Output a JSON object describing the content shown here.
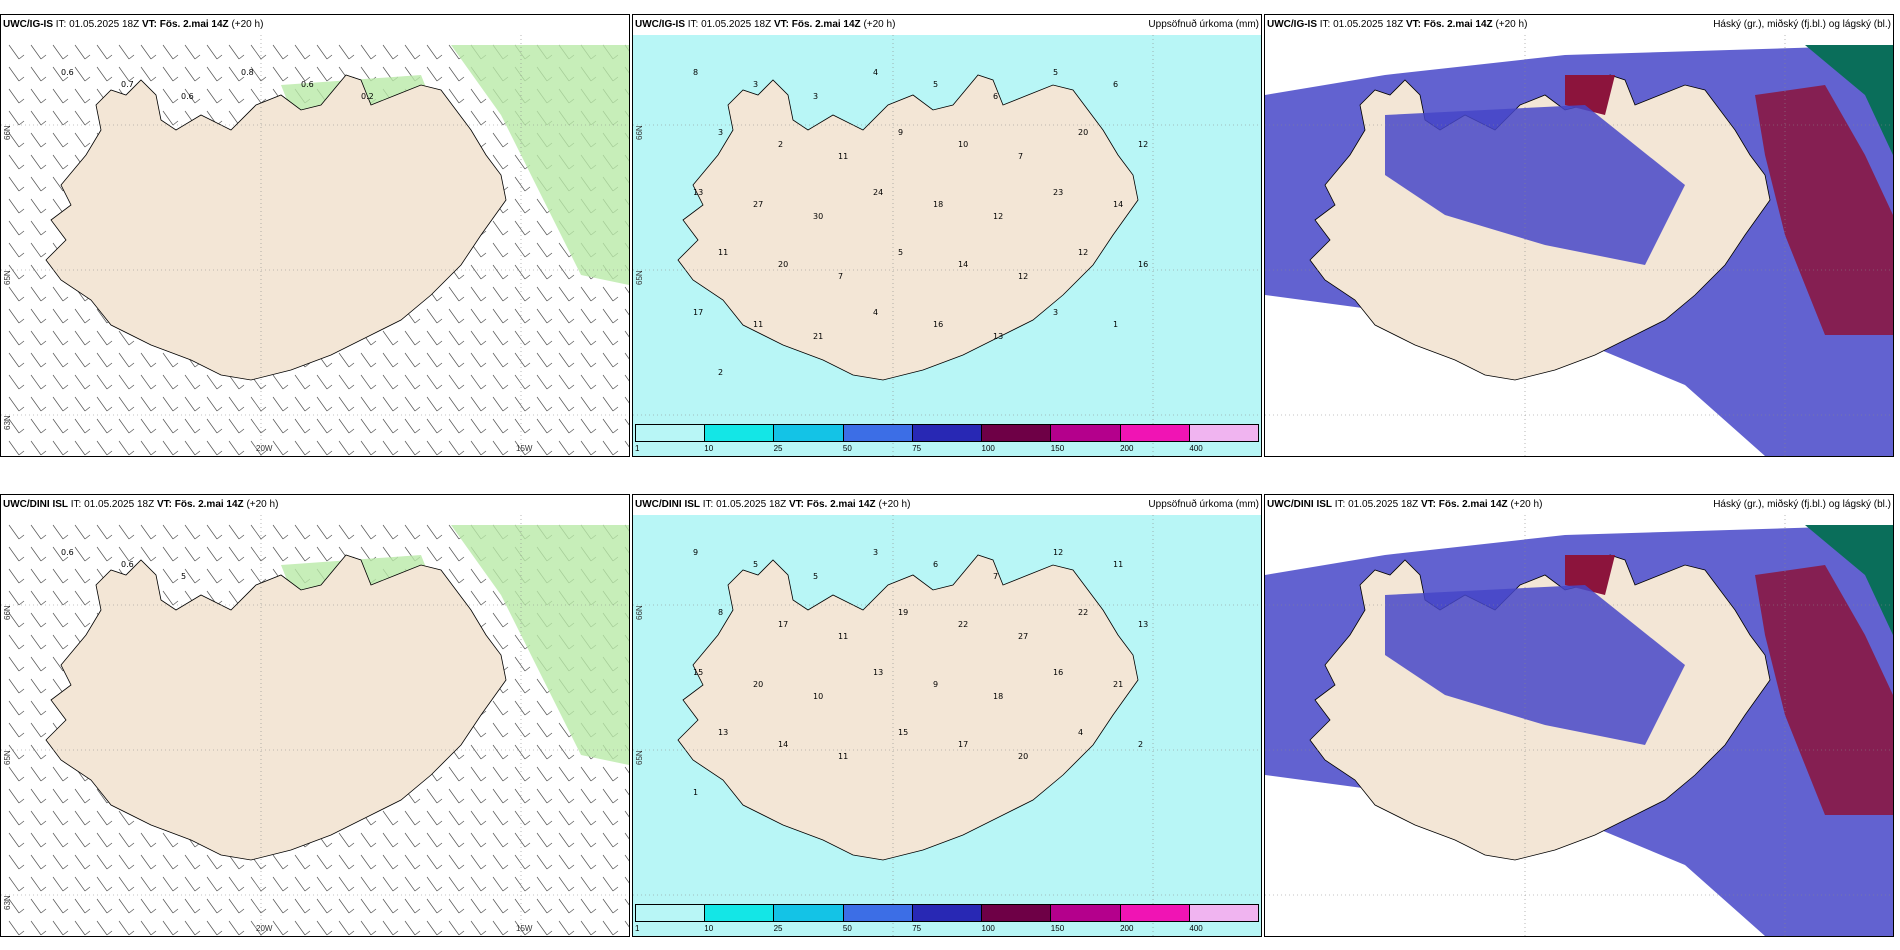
{
  "panels": [
    {
      "model": "UWC/IG-IS",
      "it": "IT: 01.05.2025 18Z",
      "vt_label": "VT:",
      "vt": "Fös. 2.mai 14Z",
      "lead": "(+20 h)",
      "right": "",
      "type": "wind",
      "lat_labels": [
        "66N",
        "65N",
        "63N"
      ],
      "lon_labels": [
        "20W",
        "15W"
      ],
      "values": [
        "0.6",
        "0.7",
        "0.6",
        "0.8",
        "0.6",
        "0.2"
      ]
    },
    {
      "model": "UWC/IG-IS",
      "it": "IT: 01.05.2025 18Z",
      "vt_label": "VT:",
      "vt": "Fös. 2.mai 14Z",
      "lead": "(+20 h)",
      "right": "Uppsöfnuð úrkoma (mm)",
      "type": "precip",
      "lat_labels": [
        "66N",
        "65N"
      ],
      "values": [
        "8",
        "3",
        "3",
        "4",
        "5",
        "6",
        "5",
        "6",
        "3",
        "2",
        "11",
        "9",
        "10",
        "7",
        "20",
        "12",
        "13",
        "27",
        "30",
        "24",
        "18",
        "12",
        "23",
        "14",
        "11",
        "20",
        "7",
        "5",
        "14",
        "12",
        "12",
        "16",
        "17",
        "11",
        "21",
        "4",
        "16",
        "13",
        "3",
        "1",
        "2"
      ]
    },
    {
      "model": "UWC/IG-IS",
      "it": "IT: 01.05.2025 18Z",
      "vt_label": "VT:",
      "vt": "Fös. 2.mai 14Z",
      "lead": "(+20 h)",
      "right": "Háský (gr.), miðský (fj.bl.) og lágský (bl.)",
      "type": "cloud"
    },
    {
      "model": "UWC/DINI ISL",
      "it": "IT: 01.05.2025 18Z",
      "vt_label": "VT:",
      "vt": "Fös. 2.mai 14Z",
      "lead": "(+20 h)",
      "right": "",
      "type": "wind",
      "lat_labels": [
        "66N",
        "65N",
        "63N"
      ],
      "lon_labels": [
        "20W",
        "15W"
      ],
      "values": [
        "0.6",
        "0.6",
        "5"
      ]
    },
    {
      "model": "UWC/DINI ISL",
      "it": "IT: 01.05.2025 18Z",
      "vt_label": "VT:",
      "vt": "Fös. 2.mai 14Z",
      "lead": "(+20 h)",
      "right": "Uppsöfnuð úrkoma (mm)",
      "type": "precip",
      "lat_labels": [
        "66N",
        "65N"
      ],
      "values": [
        "9",
        "5",
        "5",
        "3",
        "6",
        "7",
        "12",
        "11",
        "8",
        "17",
        "11",
        "19",
        "22",
        "27",
        "22",
        "13",
        "15",
        "20",
        "10",
        "13",
        "9",
        "18",
        "16",
        "21",
        "13",
        "14",
        "11",
        "15",
        "17",
        "20",
        "4",
        "2",
        "1"
      ]
    },
    {
      "model": "UWC/DINI ISL",
      "it": "IT: 01.05.2025 18Z",
      "vt_label": "VT:",
      "vt": "Fös. 2.mai 14Z",
      "lead": "(+20 h)",
      "right": "Háský (gr.), miðský (fj.bl.) og lágský (bl.)",
      "type": "cloud"
    }
  ],
  "colorbar": {
    "ticks": [
      "1",
      "10",
      "25",
      "50",
      "75",
      "100",
      "150",
      "200",
      "400"
    ],
    "colors": [
      "#b8f6f6",
      "#14e6e6",
      "#14c3e6",
      "#3c6ee6",
      "#2828b4",
      "#6e0046",
      "#b4008c",
      "#f014b4",
      "#f0b4f0"
    ]
  },
  "colors": {
    "land": "#f3e6d6",
    "sea_precip": "#b8f6f6",
    "cloud_high": "#0a6e5a",
    "cloud_mid": "#8c143c",
    "cloud_low": "#4646c8"
  }
}
